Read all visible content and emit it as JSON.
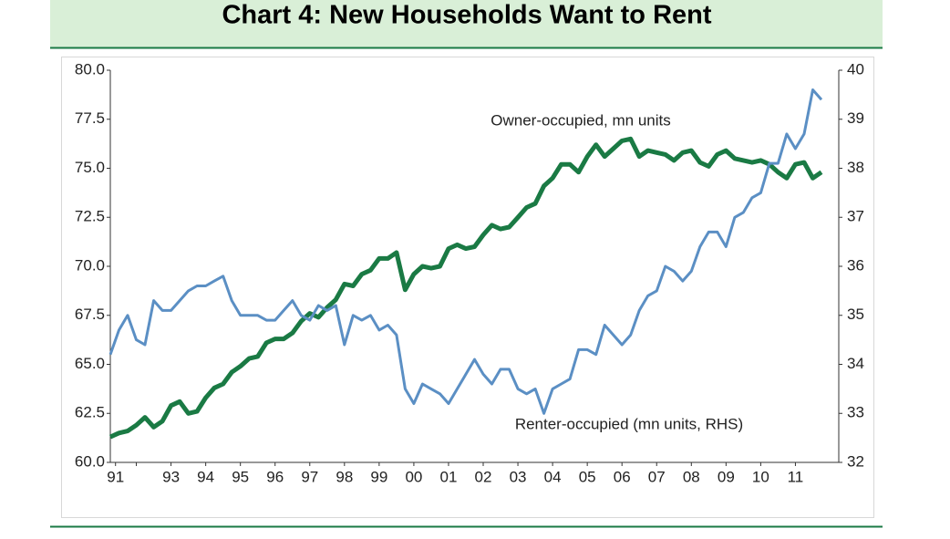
{
  "chart_data": {
    "type": "line",
    "title": "Chart 4: New Households Want to Rent",
    "annotations": [
      "Owner-occupied,  mn units",
      "Renter-occupied (mn units, RHS)"
    ],
    "x": [
      1991.25,
      1991.5,
      1991.75,
      1992,
      1992.25,
      1992.5,
      1992.75,
      1993,
      1993.25,
      1993.5,
      1993.75,
      1994,
      1994.25,
      1994.5,
      1994.75,
      1995,
      1995.25,
      1995.5,
      1995.75,
      1996,
      1996.25,
      1996.5,
      1996.75,
      1997,
      1997.25,
      1997.5,
      1997.75,
      1998,
      1998.25,
      1998.5,
      1998.75,
      1999,
      1999.25,
      1999.5,
      1999.75,
      2000,
      2000.25,
      2000.5,
      2000.75,
      2001,
      2001.25,
      2001.5,
      2001.75,
      2002,
      2002.25,
      2002.5,
      2002.75,
      2003,
      2003.25,
      2003.5,
      2003.75,
      2004,
      2004.25,
      2004.5,
      2004.75,
      2005,
      2005.25,
      2005.5,
      2005.75,
      2006,
      2006.25,
      2006.5,
      2006.75,
      2007,
      2007.25,
      2007.5,
      2007.75,
      2008,
      2008.25,
      2008.5,
      2008.75,
      2009,
      2009.25,
      2009.5,
      2009.75,
      2010,
      2010.25,
      2010.5,
      2010.75,
      2011,
      2011.25,
      2011.5,
      2011.75
    ],
    "series": [
      {
        "name": "Owner-occupied,  mn units",
        "color": "#1a7a44",
        "axis": "y",
        "values": [
          61.3,
          61.5,
          61.6,
          61.9,
          62.3,
          61.8,
          62.1,
          62.9,
          63.1,
          62.5,
          62.6,
          63.3,
          63.8,
          64.0,
          64.6,
          64.9,
          65.3,
          65.4,
          66.1,
          66.3,
          66.3,
          66.6,
          67.2,
          67.6,
          67.4,
          67.9,
          68.3,
          69.1,
          69.0,
          69.6,
          69.8,
          70.4,
          70.4,
          70.7,
          68.8,
          69.6,
          70.0,
          69.9,
          70.0,
          70.9,
          71.1,
          70.9,
          71.0,
          71.6,
          72.1,
          71.9,
          72.0,
          72.5,
          73.0,
          73.2,
          74.1,
          74.5,
          75.2,
          75.2,
          74.8,
          75.6,
          76.2,
          75.6,
          76.0,
          76.4,
          76.5,
          75.6,
          75.9,
          75.8,
          75.7,
          75.4,
          75.8,
          75.9,
          75.3,
          75.1,
          75.7,
          75.9,
          75.5,
          75.4,
          75.3,
          75.4,
          75.2,
          74.8,
          74.5,
          75.2,
          75.3,
          74.5,
          74.8
        ]
      },
      {
        "name": "Renter-occupied (mn units, RHS)",
        "color": "#5b8fc4",
        "axis": "y2",
        "values": [
          34.2,
          34.7,
          35.0,
          34.5,
          34.4,
          35.3,
          35.1,
          35.1,
          35.3,
          35.5,
          35.6,
          35.6,
          35.7,
          35.8,
          35.3,
          35.0,
          35.0,
          35.0,
          34.9,
          34.9,
          35.1,
          35.3,
          35.0,
          34.9,
          35.2,
          35.1,
          35.2,
          34.4,
          35.0,
          34.9,
          35.0,
          34.7,
          34.8,
          34.6,
          33.5,
          33.2,
          33.6,
          33.5,
          33.4,
          33.2,
          33.5,
          33.8,
          34.1,
          33.8,
          33.6,
          33.9,
          33.9,
          33.5,
          33.4,
          33.5,
          33.0,
          33.5,
          33.6,
          33.7,
          34.3,
          34.3,
          34.2,
          34.8,
          34.6,
          34.4,
          34.6,
          35.1,
          35.4,
          35.5,
          36.0,
          35.9,
          35.7,
          35.9,
          36.4,
          36.7,
          36.7,
          36.4,
          37.0,
          37.1,
          37.4,
          37.5,
          38.1,
          38.1,
          38.7,
          38.4,
          38.7,
          39.6,
          39.4
        ]
      }
    ],
    "xlim": [
      1991.25,
      2012.25
    ],
    "xticks": [
      {
        "value": 1991.4,
        "label": "91"
      },
      {
        "value": 1992,
        "label": null
      },
      {
        "value": 1993,
        "label": "93"
      },
      {
        "value": 1994,
        "label": "94"
      },
      {
        "value": 1995,
        "label": "95"
      },
      {
        "value": 1996,
        "label": "96"
      },
      {
        "value": 1997,
        "label": "97"
      },
      {
        "value": 1998,
        "label": "98"
      },
      {
        "value": 1999,
        "label": "99"
      },
      {
        "value": 2000,
        "label": "00"
      },
      {
        "value": 2001,
        "label": "01"
      },
      {
        "value": 2002,
        "label": "02"
      },
      {
        "value": 2003,
        "label": "03"
      },
      {
        "value": 2004,
        "label": "04"
      },
      {
        "value": 2005,
        "label": "05"
      },
      {
        "value": 2006,
        "label": "06"
      },
      {
        "value": 2007,
        "label": "07"
      },
      {
        "value": 2008,
        "label": "08"
      },
      {
        "value": 2009,
        "label": "09"
      },
      {
        "value": 2010,
        "label": "10"
      },
      {
        "value": 2011,
        "label": "11"
      }
    ],
    "ylim": [
      60,
      80
    ],
    "yticks": [
      {
        "value": 60,
        "label": "60.0"
      },
      {
        "value": 62.5,
        "label": "62.5"
      },
      {
        "value": 65,
        "label": "65.0"
      },
      {
        "value": 67.5,
        "label": "67.5"
      },
      {
        "value": 70,
        "label": "70.0"
      },
      {
        "value": 72.5,
        "label": "72.5"
      },
      {
        "value": 75,
        "label": "75.0"
      },
      {
        "value": 77.5,
        "label": "77.5"
      },
      {
        "value": 80,
        "label": "80.0"
      }
    ],
    "y2lim": [
      32,
      40
    ],
    "y2ticks": [
      32,
      33,
      34,
      35,
      36,
      37,
      38,
      39,
      40
    ],
    "grid": false
  }
}
